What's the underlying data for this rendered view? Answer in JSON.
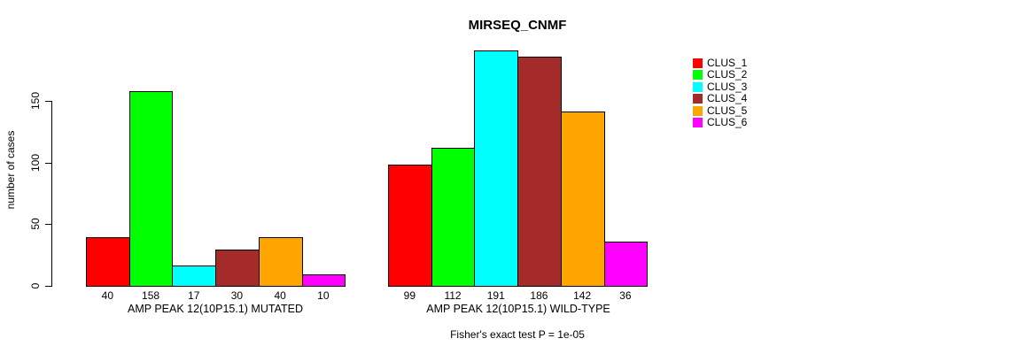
{
  "chart_data": {
    "type": "bar",
    "title": "MIRSEQ_CNMF",
    "ylabel": "number of cases",
    "xlabel": "",
    "ylim": [
      0,
      191
    ],
    "yticks": [
      0,
      50,
      100,
      150
    ],
    "grid": false,
    "legend_position": "right-outside",
    "bar_value_labels": true,
    "categories": [
      "AMP PEAK 12(10P15.1) MUTATED",
      "AMP PEAK 12(10P15.1) WILD-TYPE"
    ],
    "series": [
      {
        "name": "CLUS_1",
        "color": "#FF0000",
        "values": [
          40,
          99
        ]
      },
      {
        "name": "CLUS_2",
        "color": "#00FF00",
        "values": [
          158,
          112
        ]
      },
      {
        "name": "CLUS_3",
        "color": "#00FFFF",
        "values": [
          17,
          191
        ]
      },
      {
        "name": "CLUS_4",
        "color": "#A52A2A",
        "values": [
          30,
          186
        ]
      },
      {
        "name": "CLUS_5",
        "color": "#FFA500",
        "values": [
          40,
          142
        ]
      },
      {
        "name": "CLUS_6",
        "color": "#FF00FF",
        "values": [
          10,
          36
        ]
      }
    ],
    "annotation": "Fisher's exact test P = 1e-05",
    "axis_color": "#000000",
    "background_color": "#FFFFFF"
  }
}
